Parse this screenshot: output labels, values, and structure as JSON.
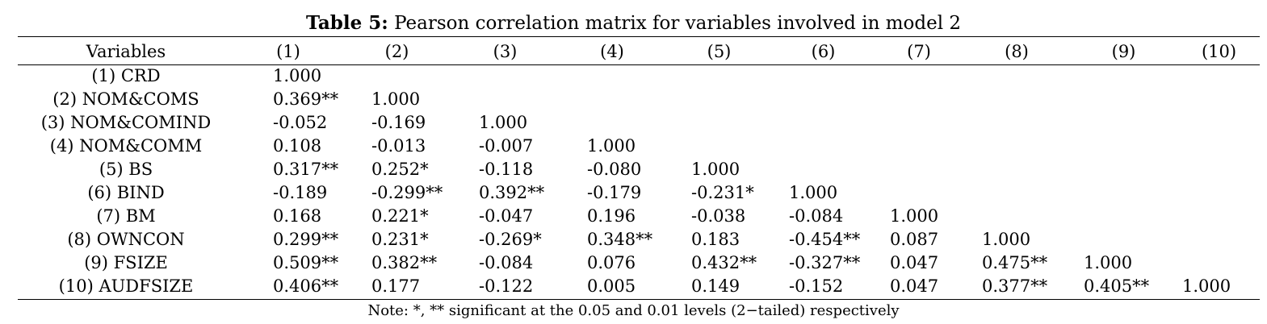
{
  "title": {
    "bold": "Table 5:",
    "text": " Pearson correlation matrix for variables involved in model 2"
  },
  "headers": [
    "Variables",
    "(1)",
    "(2)",
    "(3)",
    "(4)",
    "(5)",
    "(6)",
    "(7)",
    "(8)",
    "(9)",
    "(10)"
  ],
  "rows": [
    {
      "label": "(1) CRD",
      "values": [
        "1.000",
        "",
        "",
        "",
        "",
        "",
        "",
        "",
        "",
        ""
      ]
    },
    {
      "label": "(2) NOM&COMS",
      "values": [
        "0.369**",
        "1.000",
        "",
        "",
        "",
        "",
        "",
        "",
        "",
        ""
      ]
    },
    {
      "label": "(3) NOM&COMIND",
      "values": [
        "-0.052",
        "-0.169",
        "1.000",
        "",
        "",
        "",
        "",
        "",
        "",
        ""
      ]
    },
    {
      "label": "(4) NOM&COMM",
      "values": [
        "0.108",
        "-0.013",
        "-0.007",
        "1.000",
        "",
        "",
        "",
        "",
        "",
        ""
      ]
    },
    {
      "label": "(5) BS",
      "values": [
        "0.317**",
        "0.252*",
        "-0.118",
        "-0.080",
        "1.000",
        "",
        "",
        "",
        "",
        ""
      ]
    },
    {
      "label": "(6) BIND",
      "values": [
        "-0.189",
        "-0.299**",
        "0.392**",
        "-0.179",
        "-0.231*",
        "1.000",
        "",
        "",
        "",
        ""
      ]
    },
    {
      "label": "(7) BM",
      "values": [
        "0.168",
        "0.221*",
        "-0.047",
        "0.196",
        "-0.038",
        "-0.084",
        "1.000",
        "",
        "",
        ""
      ]
    },
    {
      "label": "(8) OWNCON",
      "values": [
        "0.299**",
        "0.231*",
        "-0.269*",
        "0.348**",
        "0.183",
        "-0.454**",
        "0.087",
        "1.000",
        "",
        ""
      ]
    },
    {
      "label": "(9) FSIZE",
      "values": [
        "0.509**",
        "0.382**",
        "-0.084",
        "0.076",
        "0.432**",
        "-0.327**",
        "0.047",
        "0.475**",
        "1.000",
        ""
      ]
    },
    {
      "label": "(10) AUDFSIZE",
      "values": [
        "0.406**",
        "0.177",
        "-0.122",
        "0.005",
        "0.149",
        "-0.152",
        "0.047",
        "0.377**",
        "0.405**",
        "1.000"
      ]
    }
  ],
  "note": "Note: *, ** significant at the 0.05 and 0.01 levels (2−tailed) respectively"
}
